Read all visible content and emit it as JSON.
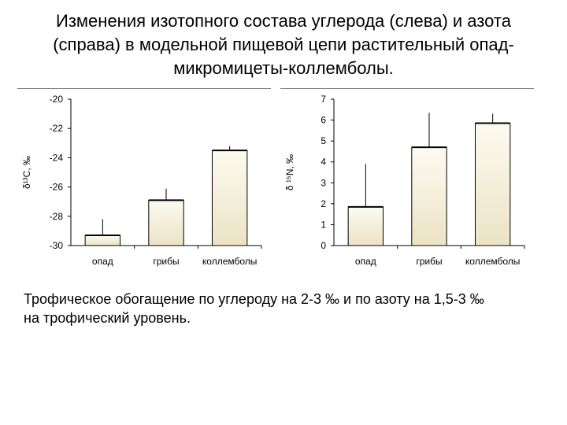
{
  "title_lines": [
    "Изменения изотопного состава углерода (слева) и азота",
    "(справа) в модельной пищевой цепи растительный опад-",
    "микромицеты-коллемболы."
  ],
  "caption_lines": [
    "Трофическое обогащение по углероду на 2-3 ‰ и по азоту на 1,5-3 ‰",
    "на трофический уровень."
  ],
  "colors": {
    "bar_fill_top": "#fdfbf0",
    "bar_fill_bottom": "#ece3c6",
    "bar_stroke": "#000000",
    "axis": "#000000"
  },
  "chart_data": [
    {
      "type": "bar",
      "ylabel": "δ¹³C, ‰",
      "categories": [
        "опад",
        "грибы",
        "коллемболы"
      ],
      "values": [
        -29.3,
        -26.9,
        -23.5
      ],
      "errors": [
        1.1,
        0.8,
        0.3
      ],
      "ylim": [
        -30,
        -20
      ],
      "yticks": [
        -20,
        -22,
        -24,
        -26,
        -28,
        -30
      ],
      "grid": false
    },
    {
      "type": "bar",
      "ylabel": "δ ¹⁵N, ‰",
      "categories": [
        "опад",
        "грибы",
        "коллемболы"
      ],
      "values": [
        1.85,
        4.7,
        5.85
      ],
      "errors": [
        2.05,
        1.65,
        0.45
      ],
      "ylim": [
        0,
        7
      ],
      "yticks": [
        7,
        6,
        5,
        4,
        3,
        2,
        1,
        0
      ],
      "grid": false
    }
  ]
}
